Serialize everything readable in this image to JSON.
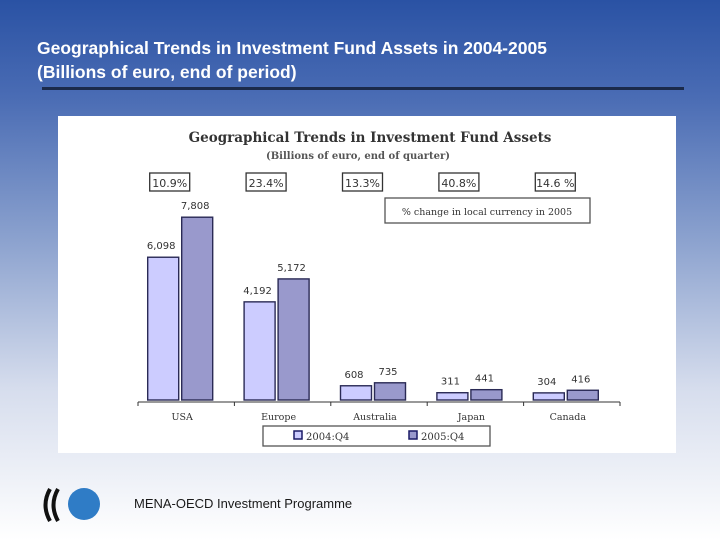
{
  "slide": {
    "title_line1": "Geographical Trends in Investment Fund Assets in 2004-2005",
    "title_line2": "(Billions of euro, end of period)",
    "footer": "MENA-OECD Investment Programme",
    "logo_icon": "oecd-logo-icon"
  },
  "chart_data": {
    "type": "bar",
    "title": "Geographical Trends in Investment Fund Assets",
    "subtitle": "(Billions of euro, end of quarter)",
    "categories": [
      "USA",
      "Europe",
      "Australia",
      "Japan",
      "Canada"
    ],
    "series": [
      {
        "name": "2004:Q4",
        "values": [
          6098,
          4192,
          608,
          311,
          304
        ],
        "labels": [
          "6,098",
          "4,192",
          "608",
          "311",
          "304"
        ],
        "color": "#ccccff"
      },
      {
        "name": "2005:Q4",
        "values": [
          7808,
          5172,
          735,
          441,
          416
        ],
        "labels": [
          "7,808",
          "5,172",
          "735",
          "441",
          "416"
        ],
        "color": "#9999cc"
      }
    ],
    "pct_change": [
      "10.9%",
      "23.4%",
      "13.3%",
      "40.8%",
      "14.6 %"
    ],
    "pct_note": "% change in local currency in 2005",
    "ylim": [
      0,
      8500
    ],
    "xlabel": "",
    "ylabel": "",
    "legend": "bottom-center",
    "grid": false
  }
}
